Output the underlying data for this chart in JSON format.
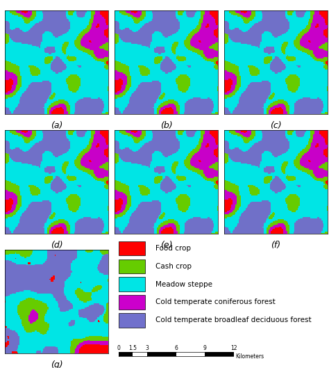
{
  "labels": [
    "(a)",
    "(b)",
    "(c)",
    "(d)",
    "(e)",
    "(f)",
    "(g)"
  ],
  "legend_items": [
    {
      "label": "Food crop",
      "color": "#FF0000"
    },
    {
      "label": "Cash crop",
      "color": "#66CC00"
    },
    {
      "label": "Meadow steppe",
      "color": "#00E5E5"
    },
    {
      "label": "Cold temperate coniferous forest",
      "color": "#CC00CC"
    },
    {
      "label": "Cold temperate broadleaf deciduous forest",
      "color": "#7070CC"
    }
  ],
  "bg_color": "#FFFFFF",
  "label_fontsize": 9,
  "legend_fontsize": 7.5
}
